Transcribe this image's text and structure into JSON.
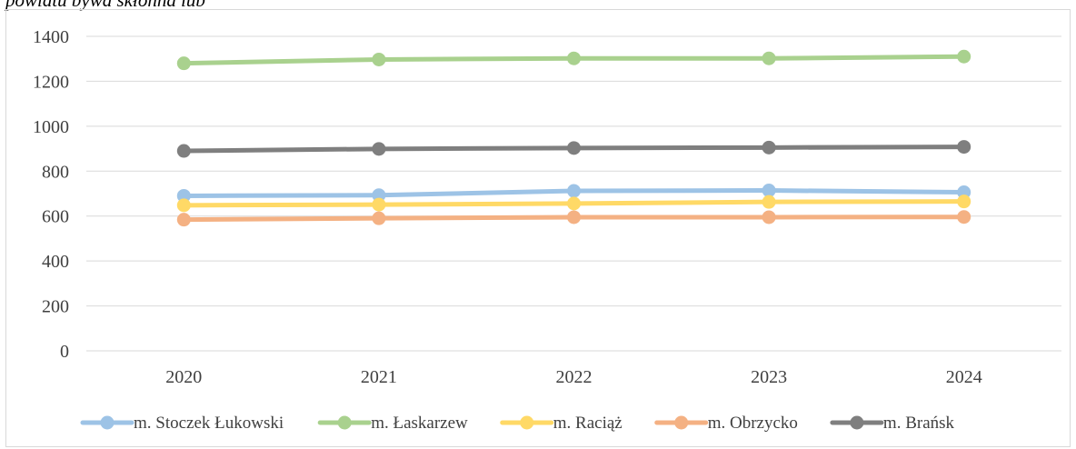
{
  "caption": "powiatu bywa skłonna lub",
  "chart_data": {
    "type": "line",
    "categories": [
      "2020",
      "2021",
      "2022",
      "2023",
      "2024"
    ],
    "ylim": [
      0,
      1400
    ],
    "yticks": [
      0,
      200,
      400,
      600,
      800,
      1000,
      1200,
      1400
    ],
    "grid": true,
    "legend_position": "bottom",
    "series": [
      {
        "name": "m. Stoczek Łukowski",
        "color": "#9dc3e6",
        "values": [
          690,
          693,
          712,
          714,
          706
        ]
      },
      {
        "name": "m. Łaskarzew",
        "color": "#a9d18e",
        "values": [
          1280,
          1297,
          1302,
          1302,
          1310
        ]
      },
      {
        "name": "m. Raciąż",
        "color": "#ffd966",
        "values": [
          648,
          651,
          656,
          663,
          665
        ]
      },
      {
        "name": "m. Obrzycko",
        "color": "#f4b183",
        "values": [
          584,
          590,
          595,
          595,
          596
        ]
      },
      {
        "name": "m. Brańsk",
        "color": "#7f7f7f",
        "values": [
          890,
          899,
          903,
          905,
          908
        ]
      }
    ]
  }
}
